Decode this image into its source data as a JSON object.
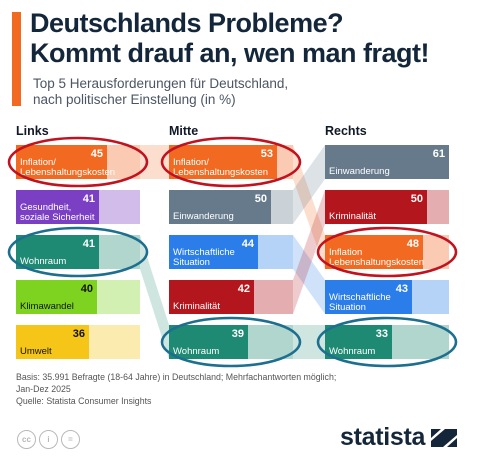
{
  "header": {
    "title_line1": "Deutschlands Probleme?",
    "title_line2": "Kommt drauf an, wen man fragt!",
    "subtitle_line1": "Top 5 Herausforderungen für Deutschland,",
    "subtitle_line2": "nach politischer Einstellung (in %)",
    "accent_color": "#f26a21"
  },
  "chart_data": {
    "type": "table",
    "columns": [
      "Links",
      "Mitte",
      "Rechts"
    ],
    "series": [
      {
        "name": "Links",
        "items": [
          {
            "rank": 1,
            "label": [
              "Inflation/",
              "Lebenshaltungskosten"
            ],
            "topic": "inflation",
            "value": 45
          },
          {
            "rank": 2,
            "label": [
              "Gesundheit,",
              "soziale Sicherheit"
            ],
            "topic": "gesundheit",
            "value": 41
          },
          {
            "rank": 3,
            "label": [
              "Wohnraum"
            ],
            "topic": "wohnraum",
            "value": 41
          },
          {
            "rank": 4,
            "label": [
              "Klimawandel"
            ],
            "topic": "klima",
            "value": 40
          },
          {
            "rank": 5,
            "label": [
              "Umwelt"
            ],
            "topic": "umwelt",
            "value": 36
          }
        ]
      },
      {
        "name": "Mitte",
        "items": [
          {
            "rank": 1,
            "label": [
              "Inflation/",
              "Lebenshaltungskosten"
            ],
            "topic": "inflation",
            "value": 53
          },
          {
            "rank": 2,
            "label": [
              "Einwanderung"
            ],
            "topic": "einwanderung",
            "value": 50
          },
          {
            "rank": 3,
            "label": [
              "Wirtschaftliche",
              "Situation"
            ],
            "topic": "wirtschaft",
            "value": 44
          },
          {
            "rank": 4,
            "label": [
              "Kriminalität"
            ],
            "topic": "kriminalitaet",
            "value": 42
          },
          {
            "rank": 5,
            "label": [
              "Wohnraum"
            ],
            "topic": "wohnraum",
            "value": 39
          }
        ]
      },
      {
        "name": "Rechts",
        "items": [
          {
            "rank": 1,
            "label": [
              "Einwanderung"
            ],
            "topic": "einwanderung",
            "value": 61
          },
          {
            "rank": 2,
            "label": [
              "Kriminalität"
            ],
            "topic": "kriminalitaet",
            "value": 50
          },
          {
            "rank": 3,
            "label": [
              "Inflation",
              "Lebenshaltungskosten"
            ],
            "topic": "inflation",
            "value": 48
          },
          {
            "rank": 4,
            "label": [
              "Wirtschaftliche",
              "Situation"
            ],
            "topic": "wirtschaft",
            "value": 43
          },
          {
            "rank": 5,
            "label": [
              "Wohnraum"
            ],
            "topic": "wohnraum",
            "value": 33
          }
        ]
      }
    ],
    "topic_colors": {
      "inflation": "#f26a21",
      "gesundheit": "#7b3fc4",
      "wohnraum": "#1f8a74",
      "klima": "#7ed321",
      "umwelt": "#f5c518",
      "einwanderung": "#667a8c",
      "wirtschaft": "#2b7de9",
      "kriminalitaet": "#b3161c"
    },
    "value_text_colors": {
      "klima": "#111111",
      "umwelt": "#111111"
    },
    "highlights": [
      {
        "column": "Links",
        "rank": 1,
        "color": "#c1121f"
      },
      {
        "column": "Mitte",
        "rank": 1,
        "color": "#c1121f"
      },
      {
        "column": "Rechts",
        "rank": 3,
        "color": "#c1121f"
      },
      {
        "column": "Links",
        "rank": 3,
        "color": "#1d6f8f"
      },
      {
        "column": "Mitte",
        "rank": 5,
        "color": "#1d6f8f"
      },
      {
        "column": "Rechts",
        "rank": 5,
        "color": "#1d6f8f"
      }
    ]
  },
  "footer": {
    "basis_line1": "Basis: 35.991 Befragte (18-64 Jahre) in Deutschland; Mehrfachantworten möglich;",
    "basis_line2": "Jan-Dez 2025",
    "source": "Quelle: Statista Consumer Insights"
  },
  "license_icons": [
    {
      "name": "cc-icon",
      "glyph": "cc"
    },
    {
      "name": "by-icon",
      "glyph": "i"
    },
    {
      "name": "nd-icon",
      "glyph": "="
    }
  ],
  "brand": {
    "name": "statista"
  }
}
